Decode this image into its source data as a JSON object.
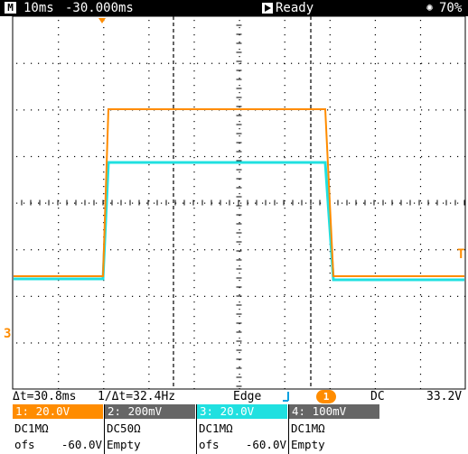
{
  "status_bar": {
    "mode_icon": "M",
    "timebase": "10ms",
    "position": "-30.000ms",
    "run_state": "Ready",
    "battery": "70%",
    "run_icon": "play-icon",
    "battery_icon": "brightness-icon"
  },
  "waveform": {
    "grid": {
      "h_divisions": 10,
      "v_divisions": 8,
      "dotted": true
    },
    "colors": {
      "ch1": "#ff8c00",
      "ch3": "#20e0e0",
      "marker": "#ff8c00",
      "cursor": "#000000"
    },
    "ch1_marker": "1",
    "ch3_marker": "3",
    "trigger_marker": "T"
  },
  "measurements": {
    "delta_t": "Δt=30.8ms",
    "inv_delta_t": "1/Δt=32.4Hz",
    "trigger_type": "Edge",
    "trigger_source": "1",
    "coupling": "DC",
    "level": "33.2V"
  },
  "channels": [
    {
      "header": "1: 20.0V",
      "impedance": "DC1MΩ",
      "ofs_label": "ofs",
      "ofs_value": "-60.0V",
      "color": "#ff8c00"
    },
    {
      "header": "2: 200mV",
      "impedance": "DC50Ω",
      "ofs_label": "Empty",
      "ofs_value": "",
      "color": "#666666"
    },
    {
      "header": "3: 20.0V",
      "impedance": "DC1MΩ",
      "ofs_label": "ofs",
      "ofs_value": "-60.0V",
      "color": "#20e0e0"
    },
    {
      "header": "4: 100mV",
      "impedance": "DC1MΩ",
      "ofs_label": "Empty",
      "ofs_value": "",
      "color": "#666666"
    }
  ]
}
